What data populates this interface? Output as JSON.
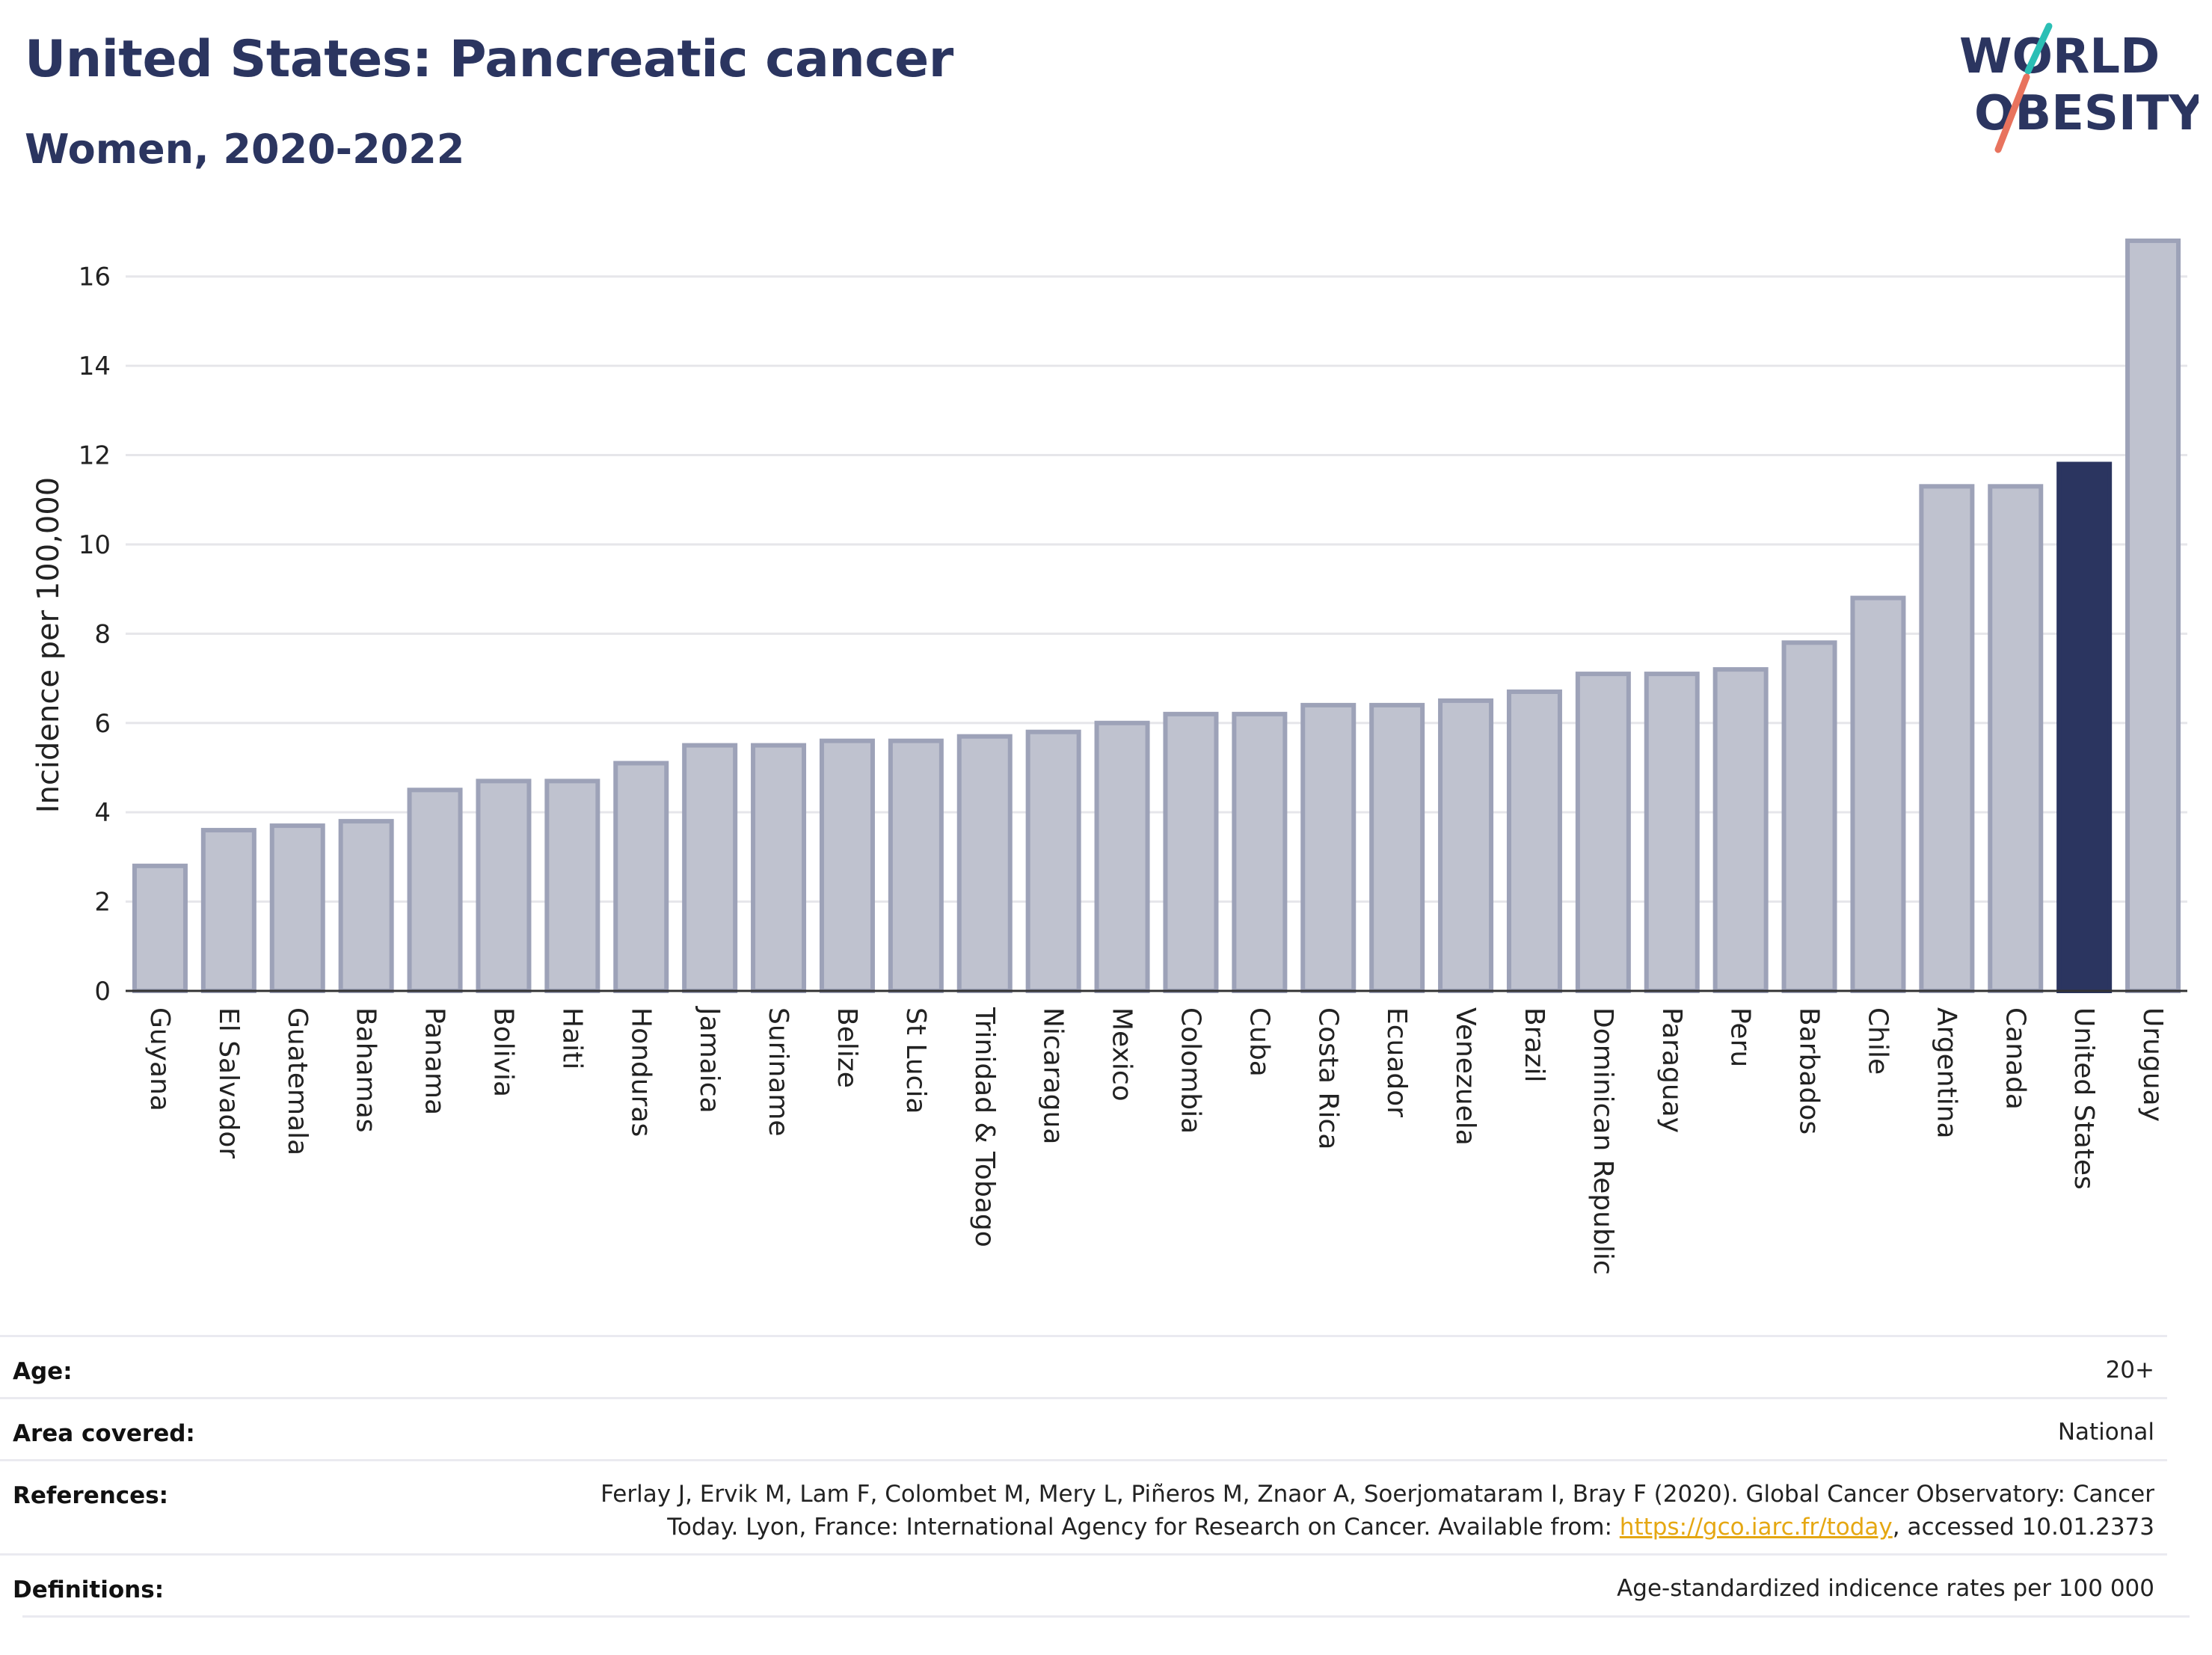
{
  "header": {
    "title": "United States: Pancreatic cancer",
    "subtitle": "Women, 2020-2022",
    "logo_line1": "WORLD",
    "logo_line2": "OBESITY"
  },
  "colors": {
    "title": "#2b3560",
    "bar": "#bfc2cf",
    "bar_stroke": "#9da2b8",
    "highlight": "#2b3560",
    "link": "#e5a712",
    "logo_teal": "#2bbfb5",
    "logo_coral": "#e8735e"
  },
  "chart_data": {
    "type": "bar",
    "ylabel": "Incidence per 100,000",
    "xlabel": "",
    "ylim": [
      0,
      17
    ],
    "yticks": [
      0,
      2,
      4,
      6,
      8,
      10,
      12,
      14,
      16
    ],
    "grid": true,
    "highlight_category": "United States",
    "categories": [
      "Guyana",
      "El Salvador",
      "Guatemala",
      "Bahamas",
      "Panama",
      "Bolivia",
      "Haiti",
      "Honduras",
      "Jamaica",
      "Suriname",
      "Belize",
      "St Lucia",
      "Trinidad & Tobago",
      "Nicaragua",
      "Mexico",
      "Colombia",
      "Cuba",
      "Costa Rica",
      "Ecuador",
      "Venezuela",
      "Brazil",
      "Dominican Republic",
      "Paraguay",
      "Peru",
      "Barbados",
      "Chile",
      "Argentina",
      "Canada",
      "United States",
      "Uruguay"
    ],
    "values": [
      2.8,
      3.6,
      3.7,
      3.8,
      4.5,
      4.7,
      4.7,
      5.1,
      5.5,
      5.5,
      5.6,
      5.6,
      5.7,
      5.8,
      6.0,
      6.2,
      6.2,
      6.4,
      6.4,
      6.5,
      6.7,
      7.1,
      7.1,
      7.2,
      7.8,
      8.8,
      11.3,
      11.3,
      11.8,
      16.8
    ]
  },
  "info": {
    "age_label": "Age:",
    "age_value": "20+",
    "area_label": "Area covered:",
    "area_value": "National",
    "references_label": "References:",
    "references_line1": "Ferlay J, Ervik M, Lam F, Colombet M, Mery L, Piñeros M, Znaor A, Soerjomataram I, Bray F (2020). Global Cancer Observatory: Cancer",
    "references_line2_prefix": "Today. Lyon, France: International Agency for Research on Cancer. Available from: ",
    "references_link": "https://gco.iarc.fr/today",
    "references_line2_suffix": ", accessed 10.01.2373",
    "definitions_label": "Definitions:",
    "definitions_value": "Age-standardized indicence rates per 100 000"
  }
}
